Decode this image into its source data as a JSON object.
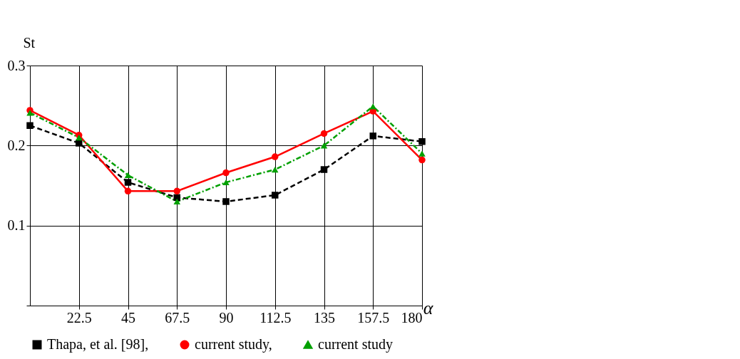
{
  "chart_data": {
    "type": "line",
    "xlabel": "α",
    "ylabel": "St",
    "x": [
      0,
      22.5,
      45,
      67.5,
      90,
      112.5,
      135,
      157.5,
      180
    ],
    "series": [
      {
        "name": "Thapa, et al. [98],",
        "color": "#000000",
        "marker": "square",
        "line_style": "dashed",
        "values": [
          0.225,
          0.203,
          0.154,
          0.135,
          0.13,
          0.138,
          0.17,
          0.212,
          0.205
        ]
      },
      {
        "name": "current study,",
        "color": "#ff0000",
        "marker": "circle",
        "line_style": "solid",
        "values": [
          0.244,
          0.213,
          0.143,
          0.143,
          0.166,
          0.186,
          0.215,
          0.243,
          0.182
        ]
      },
      {
        "name": "current study",
        "color": "#00a000",
        "marker": "triangle",
        "line_style": "dotted",
        "values": [
          0.241,
          0.21,
          0.163,
          0.13,
          0.154,
          0.17,
          0.2,
          0.249,
          0.19
        ]
      }
    ],
    "xlim": [
      0,
      180
    ],
    "ylim": [
      0,
      0.3
    ],
    "xticks": [
      22.5,
      45,
      67.5,
      90,
      112.5,
      135,
      157.5,
      180
    ],
    "yticks": [
      {
        "value": 0,
        "label": null
      },
      0.1,
      0.2,
      0.3
    ],
    "grid": true,
    "legend": "bottom"
  }
}
